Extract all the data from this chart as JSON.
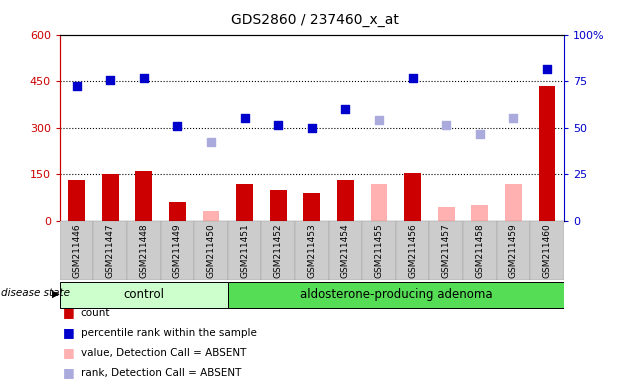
{
  "title": "GDS2860 / 237460_x_at",
  "samples": [
    "GSM211446",
    "GSM211447",
    "GSM211448",
    "GSM211449",
    "GSM211450",
    "GSM211451",
    "GSM211452",
    "GSM211453",
    "GSM211454",
    "GSM211455",
    "GSM211456",
    "GSM211457",
    "GSM211458",
    "GSM211459",
    "GSM211460"
  ],
  "count_values": [
    130,
    150,
    160,
    60,
    null,
    120,
    100,
    90,
    130,
    null,
    155,
    null,
    null,
    null,
    435
  ],
  "count_absent": [
    null,
    null,
    null,
    null,
    30,
    null,
    null,
    null,
    null,
    120,
    null,
    45,
    50,
    120,
    null
  ],
  "percentile_values": [
    435,
    455,
    460,
    305,
    null,
    330,
    310,
    300,
    360,
    null,
    460,
    null,
    null,
    null,
    490
  ],
  "percentile_absent": [
    null,
    null,
    null,
    null,
    255,
    null,
    null,
    null,
    null,
    325,
    null,
    310,
    280,
    330,
    null
  ],
  "ylim_left": [
    0,
    600
  ],
  "ylim_right": [
    0,
    100
  ],
  "left_ticks": [
    0,
    150,
    300,
    450,
    600
  ],
  "right_ticks": [
    0,
    25,
    50,
    75,
    100
  ],
  "n_control": 5,
  "n_adenoma": 10,
  "bar_color_present": "#cc0000",
  "bar_color_absent": "#ffb0b0",
  "dot_color_present": "#0000cc",
  "dot_color_absent": "#aaaadd",
  "control_bg": "#ccffcc",
  "adenoma_bg": "#55dd55",
  "disease_state_label": "disease state",
  "xlabel_control": "control",
  "xlabel_adenoma": "aldosterone-producing adenoma",
  "legend_items": [
    "count",
    "percentile rank within the sample",
    "value, Detection Call = ABSENT",
    "rank, Detection Call = ABSENT"
  ],
  "legend_colors": [
    "#cc0000",
    "#0000cc",
    "#ffb0b0",
    "#aaaadd"
  ],
  "dot_size": 35
}
